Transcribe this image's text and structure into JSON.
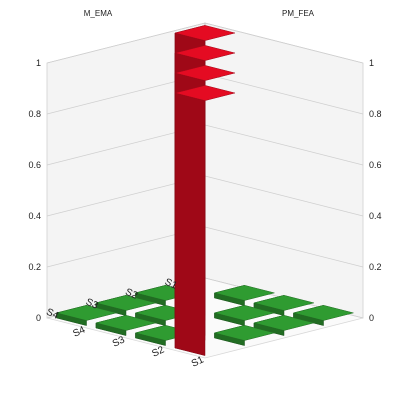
{
  "chart_data": {
    "type": "bar",
    "view": "3d",
    "axis_titles": {
      "left_back": "M_EMA",
      "right_back": "PM_FEA"
    },
    "rows": [
      "S1",
      "S2",
      "S3",
      "S4"
    ],
    "columns": [
      "S1",
      "S2",
      "S3",
      "S4"
    ],
    "z_ticks_left": [
      "0",
      "0.2",
      "0.4",
      "0.6",
      "0.8",
      "1"
    ],
    "z_ticks_right": [
      "0",
      "0.2",
      "0.4",
      "0.6",
      "0.8",
      "1"
    ],
    "zlim": [
      0,
      1
    ],
    "grid": true,
    "values": [
      [
        1.0,
        0.02,
        0.02,
        0.02
      ],
      [
        0.02,
        1.0,
        0.02,
        0.02
      ],
      [
        0.02,
        0.02,
        1.0,
        0.02
      ],
      [
        0.02,
        0.02,
        0.02,
        1.0
      ]
    ],
    "colors": {
      "high": "#cc0a1e",
      "low": "#2a8a2c"
    }
  }
}
